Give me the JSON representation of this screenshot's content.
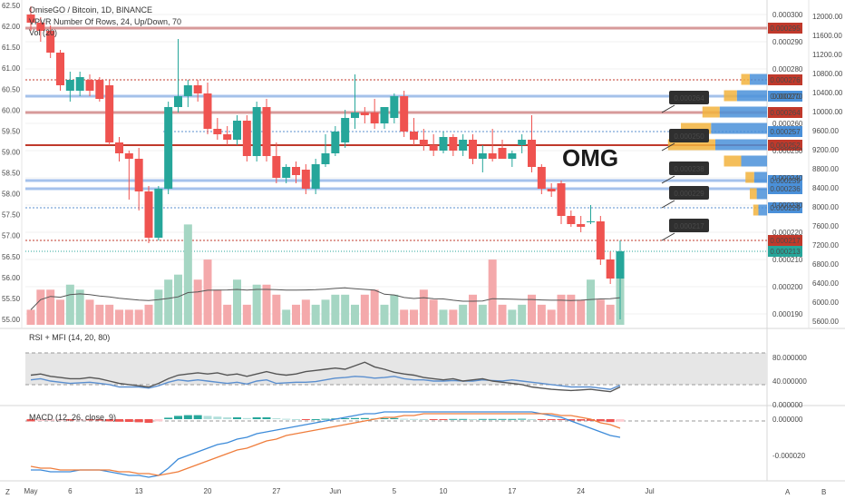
{
  "header": {
    "symbol_title": "OmiseGO / Bitcoin, 1D, BINANCE",
    "vpvr_label": "VPVR Number Of Rows, 24, Up/Down, 70",
    "vol_label": "Vol (20)"
  },
  "annotation": {
    "text": "OMG"
  },
  "colors": {
    "up": "#26a69a",
    "down": "#ef5350",
    "up_vol": "#a5d6c3",
    "down_vol": "#f4a9ab",
    "hline_blue": "#8fb4e8",
    "hline_red": "#c0392b",
    "ma_line": "#555555",
    "rsi_line": "#5b8fcf",
    "mfi_line": "#555555",
    "macd_line": "#3d8bd9",
    "signal_line": "#ef7d3c"
  },
  "chart_data": [
    {
      "type": "candlestick",
      "name": "price",
      "x_tick_labels": [
        "May",
        "6",
        "13",
        "20",
        "27",
        "Jun",
        "5",
        "10",
        "17",
        "24",
        "Jul"
      ],
      "left_axis_ticks": [
        "62.50",
        "62.00",
        "61.50",
        "61.00",
        "60.50",
        "60.00",
        "59.50",
        "59.00",
        "58.50",
        "58.00",
        "57.50",
        "57.00",
        "56.50",
        "56.00",
        "55.50",
        "55.00"
      ],
      "right_axis_ticks": [
        "0.000300",
        "0.000290",
        "0.000280",
        "0.000270",
        "0.000260",
        "0.000250",
        "0.000240",
        "0.000230",
        "0.000220",
        "0.000210",
        "0.000200",
        "0.000190"
      ],
      "volume_axis_ticks": [
        "12000.00",
        "11600.00",
        "11200.00",
        "10800.00",
        "10400.00",
        "10000.00",
        "9600.00",
        "9200.00",
        "8800.00",
        "8400.00",
        "8000.00",
        "7600.00",
        "7200.00",
        "6800.00",
        "6400.00",
        "6000.00",
        "5600.00"
      ],
      "ylim": [
        0.000186,
        0.000304
      ],
      "candles": [
        {
          "o": 0.0003,
          "h": 0.000303,
          "l": 0.000294,
          "c": 0.000297
        },
        {
          "o": 0.000297,
          "h": 0.000299,
          "l": 0.00029,
          "c": 0.000294
        },
        {
          "o": 0.000294,
          "h": 0.000296,
          "l": 0.000284,
          "c": 0.000286
        },
        {
          "o": 0.000286,
          "h": 0.000287,
          "l": 0.000272,
          "c": 0.000274
        },
        {
          "o": 0.000272,
          "h": 0.000279,
          "l": 0.000268,
          "c": 0.000276
        },
        {
          "o": 0.000272,
          "h": 0.000279,
          "l": 0.00027,
          "c": 0.000277
        },
        {
          "o": 0.000276,
          "h": 0.000278,
          "l": 0.00027,
          "c": 0.000272
        },
        {
          "o": 0.000276,
          "h": 0.000277,
          "l": 0.000268,
          "c": 0.000269
        },
        {
          "o": 0.000274,
          "h": 0.000276,
          "l": 0.000252,
          "c": 0.000253
        },
        {
          "o": 0.000253,
          "h": 0.000255,
          "l": 0.000246,
          "c": 0.000249
        },
        {
          "o": 0.000249,
          "h": 0.00025,
          "l": 0.000232,
          "c": 0.000247
        },
        {
          "o": 0.000247,
          "h": 0.000251,
          "l": 0.000228,
          "c": 0.000235
        },
        {
          "o": 0.000235,
          "h": 0.000237,
          "l": 0.000216,
          "c": 0.000218
        },
        {
          "o": 0.000218,
          "h": 0.000237,
          "l": 0.000217,
          "c": 0.000236
        },
        {
          "o": 0.000236,
          "h": 0.000268,
          "l": 0.000234,
          "c": 0.000266
        },
        {
          "o": 0.000266,
          "h": 0.000291,
          "l": 0.000264,
          "c": 0.00027
        },
        {
          "o": 0.00027,
          "h": 0.000276,
          "l": 0.000266,
          "c": 0.000274
        },
        {
          "o": 0.000274,
          "h": 0.000276,
          "l": 0.000268,
          "c": 0.000271
        },
        {
          "o": 0.000271,
          "h": 0.000275,
          "l": 0.000256,
          "c": 0.000258
        },
        {
          "o": 0.000258,
          "h": 0.000262,
          "l": 0.000254,
          "c": 0.000256
        },
        {
          "o": 0.000256,
          "h": 0.000259,
          "l": 0.000252,
          "c": 0.000254
        },
        {
          "o": 0.000254,
          "h": 0.000263,
          "l": 0.000252,
          "c": 0.000261
        },
        {
          "o": 0.000261,
          "h": 0.000263,
          "l": 0.000246,
          "c": 0.000248
        },
        {
          "o": 0.000248,
          "h": 0.000268,
          "l": 0.000246,
          "c": 0.000266
        },
        {
          "o": 0.000266,
          "h": 0.000269,
          "l": 0.000246,
          "c": 0.000248
        },
        {
          "o": 0.000248,
          "h": 0.000253,
          "l": 0.000238,
          "c": 0.00024
        },
        {
          "o": 0.00024,
          "h": 0.000245,
          "l": 0.000238,
          "c": 0.000244
        },
        {
          "o": 0.000244,
          "h": 0.000246,
          "l": 0.000238,
          "c": 0.000241
        },
        {
          "o": 0.000243,
          "h": 0.000245,
          "l": 0.000234,
          "c": 0.000236
        },
        {
          "o": 0.000236,
          "h": 0.000247,
          "l": 0.000234,
          "c": 0.000245
        },
        {
          "o": 0.000245,
          "h": 0.000256,
          "l": 0.000244,
          "c": 0.000249
        },
        {
          "o": 0.000249,
          "h": 0.000259,
          "l": 0.000248,
          "c": 0.000257
        },
        {
          "o": 0.000253,
          "h": 0.000265,
          "l": 0.000251,
          "c": 0.000262
        },
        {
          "o": 0.000262,
          "h": 0.000278,
          "l": 0.000258,
          "c": 0.000264
        },
        {
          "o": 0.000264,
          "h": 0.000266,
          "l": 0.00026,
          "c": 0.000263
        },
        {
          "o": 0.000264,
          "h": 0.000269,
          "l": 0.000258,
          "c": 0.00026
        },
        {
          "o": 0.00026,
          "h": 0.000266,
          "l": 0.000258,
          "c": 0.000266
        },
        {
          "o": 0.000262,
          "h": 0.000271,
          "l": 0.00026,
          "c": 0.00027
        },
        {
          "o": 0.00027,
          "h": 0.000272,
          "l": 0.000255,
          "c": 0.000257
        },
        {
          "o": 0.000257,
          "h": 0.000262,
          "l": 0.000252,
          "c": 0.000254
        },
        {
          "o": 0.000254,
          "h": 0.000258,
          "l": 0.00025,
          "c": 0.000252
        },
        {
          "o": 0.000252,
          "h": 0.000256,
          "l": 0.000248,
          "c": 0.00025
        },
        {
          "o": 0.00025,
          "h": 0.000257,
          "l": 0.000249,
          "c": 0.000255
        },
        {
          "o": 0.000255,
          "h": 0.000256,
          "l": 0.000248,
          "c": 0.00025
        },
        {
          "o": 0.00025,
          "h": 0.000256,
          "l": 0.000248,
          "c": 0.000254
        },
        {
          "o": 0.000254,
          "h": 0.000256,
          "l": 0.000245,
          "c": 0.000247
        },
        {
          "o": 0.000247,
          "h": 0.000252,
          "l": 0.000242,
          "c": 0.000249
        },
        {
          "o": 0.000249,
          "h": 0.000258,
          "l": 0.000246,
          "c": 0.000247
        },
        {
          "o": 0.000251,
          "h": 0.000254,
          "l": 0.000248,
          "c": 0.000247
        },
        {
          "o": 0.000247,
          "h": 0.00025,
          "l": 0.000244,
          "c": 0.000249
        },
        {
          "o": 0.000252,
          "h": 0.000256,
          "l": 0.000249,
          "c": 0.000254
        },
        {
          "o": 0.000254,
          "h": 0.000263,
          "l": 0.000242,
          "c": 0.000244
        },
        {
          "o": 0.000244,
          "h": 0.000245,
          "l": 0.000234,
          "c": 0.000236
        },
        {
          "o": 0.000236,
          "h": 0.000238,
          "l": 0.000233,
          "c": 0.000235
        },
        {
          "o": 0.000238,
          "h": 0.000239,
          "l": 0.000223,
          "c": 0.000226
        },
        {
          "o": 0.000226,
          "h": 0.000228,
          "l": 0.000222,
          "c": 0.000223
        },
        {
          "o": 0.000223,
          "h": 0.000226,
          "l": 0.00022,
          "c": 0.000222
        },
        {
          "o": 0.000224,
          "h": 0.00023,
          "l": 0.000223,
          "c": 0.000224
        },
        {
          "o": 0.000224,
          "h": 0.000226,
          "l": 0.000208,
          "c": 0.00021
        },
        {
          "o": 0.00021,
          "h": 0.000213,
          "l": 0.000201,
          "c": 0.000203
        },
        {
          "o": 0.000203,
          "h": 0.000217,
          "l": 0.000188,
          "c": 0.000213
        }
      ],
      "volumes": [
        5900,
        6300,
        6300,
        6100,
        6400,
        6300,
        6100,
        6000,
        6000,
        5900,
        5900,
        5900,
        6000,
        6300,
        6500,
        6600,
        7600,
        6500,
        6900,
        6300,
        6000,
        6500,
        6000,
        6400,
        6400,
        6200,
        5900,
        6000,
        6100,
        6000,
        6100,
        6200,
        6200,
        6000,
        6200,
        6300,
        6000,
        6200,
        5900,
        5900,
        6300,
        6100,
        5900,
        5900,
        6000,
        6200,
        6000,
        6900,
        6000,
        5900,
        6000,
        6200,
        6000,
        5900,
        6200,
        6200,
        6100,
        6500,
        6100,
        6000,
        6700
      ],
      "horizontal_levels": [
        {
          "value": 0.000295,
          "label": "0.000295",
          "style": "red-band"
        },
        {
          "value": 0.000276,
          "label": "0.000276",
          "style": "red-dotted"
        },
        {
          "value": 0.00027,
          "label": "0.000270",
          "style": "blue-band"
        },
        {
          "value": 0.000264,
          "label": "0.000264",
          "style": "red-band"
        },
        {
          "value": 0.000257,
          "label": "0.000257",
          "style": "blue-dotted"
        },
        {
          "value": 0.000252,
          "label": "0.000252",
          "style": "red-solid"
        },
        {
          "value": 0.000239,
          "label": "0.000239",
          "style": "blue-band"
        },
        {
          "value": 0.000236,
          "label": "0.000236",
          "style": "blue-band"
        },
        {
          "value": 0.000229,
          "label": "0.000229",
          "style": "blue-dotted"
        },
        {
          "value": 0.000217,
          "label": "0.000217",
          "style": "red-dotted"
        },
        {
          "value": 0.000213,
          "label": "0.000213",
          "style": "teal-dotted"
        }
      ],
      "callouts": [
        {
          "value": 0.000264,
          "label": "0.000264"
        },
        {
          "value": 0.00025,
          "label": "0.000250"
        },
        {
          "value": 0.000238,
          "label": "0.000238"
        },
        {
          "value": 0.000229,
          "label": "0.000229"
        },
        {
          "value": 0.000217,
          "label": "0.000217"
        }
      ],
      "vpvr_profile": [
        {
          "price": 0.000276,
          "up": 0.2,
          "down": 0.1
        },
        {
          "price": 0.00027,
          "up": 0.35,
          "down": 0.15
        },
        {
          "price": 0.000264,
          "up": 0.55,
          "down": 0.2
        },
        {
          "price": 0.000258,
          "up": 0.65,
          "down": 0.35
        },
        {
          "price": 0.000252,
          "up": 0.6,
          "down": 0.55
        },
        {
          "price": 0.000246,
          "up": 0.3,
          "down": 0.2
        },
        {
          "price": 0.00024,
          "up": 0.15,
          "down": 0.1
        },
        {
          "price": 0.000234,
          "up": 0.12,
          "down": 0.08
        },
        {
          "price": 0.000228,
          "up": 0.1,
          "down": 0.06
        }
      ]
    },
    {
      "type": "line",
      "name": "rsi-mfi",
      "legend": "RSI + MFI (14, 20, 80)",
      "axis_ticks": [
        "80.000000",
        "40.000000",
        "0.000000"
      ],
      "ylim": [
        0,
        100
      ],
      "bands": [
        20,
        80
      ],
      "rsi": [
        42,
        44,
        40,
        38,
        36,
        37,
        38,
        36,
        34,
        30,
        30,
        30,
        28,
        32,
        38,
        42,
        40,
        42,
        40,
        38,
        36,
        38,
        35,
        40,
        42,
        36,
        37,
        38,
        38,
        39,
        42,
        45,
        46,
        48,
        47,
        45,
        46,
        48,
        44,
        42,
        42,
        40,
        40,
        41,
        40,
        40,
        42,
        41,
        40,
        42,
        40,
        38,
        36,
        34,
        32,
        30,
        30,
        30,
        28,
        26,
        33
      ],
      "mfi": [
        50,
        52,
        48,
        46,
        44,
        44,
        46,
        44,
        40,
        36,
        34,
        32,
        30,
        36,
        44,
        50,
        52,
        54,
        52,
        54,
        50,
        52,
        48,
        52,
        56,
        52,
        50,
        52,
        56,
        58,
        60,
        62,
        60,
        66,
        72,
        64,
        60,
        55,
        52,
        50,
        46,
        44,
        42,
        44,
        40,
        42,
        44,
        40,
        38,
        36,
        34,
        30,
        28,
        26,
        25,
        24,
        25,
        26,
        24,
        22,
        30
      ]
    },
    {
      "type": "bar+line",
      "name": "macd",
      "legend": "MACD (12, 26, close, 9)",
      "axis_ticks": [
        "0.000000",
        "-0.000020"
      ],
      "ylim": [
        -3.3e-05,
        5e-06
      ],
      "histogram": [
        -1.2e-06,
        -1e-06,
        -9e-07,
        -8e-07,
        -8e-07,
        -7e-07,
        -7e-07,
        -8e-07,
        -1.2e-06,
        -1.4e-06,
        -1.5e-06,
        -1.7e-06,
        -2e-06,
        -1.2e-06,
        8e-07,
        1.8e-06,
        2.2e-06,
        2.2e-06,
        1.8e-06,
        1.4e-06,
        1e-06,
        1e-06,
        6e-07,
        1e-06,
        1e-06,
        5e-07,
        2e-07,
        0.0,
        -2e-07,
        0.0,
        2e-07,
        4e-07,
        5e-07,
        6e-07,
        6e-07,
        5e-07,
        5e-07,
        6e-07,
        2e-07,
        1e-07,
        0.0,
        -1e-07,
        -1e-07,
        1e-07,
        1e-07,
        0.0,
        1e-07,
        1e-07,
        1e-07,
        1e-07,
        2e-07,
        0.0,
        -2e-07,
        -3e-07,
        -5e-07,
        -7e-07,
        -8e-07,
        -9e-07,
        -1.2e-06,
        -1.6e-06,
        -1.4e-06
      ],
      "macd": [
        -2.8e-05,
        -2.8e-05,
        -2.9e-05,
        -2.9e-05,
        -2.9e-05,
        -2.8e-05,
        -2.8e-05,
        -2.8e-05,
        -2.9e-05,
        -3e-05,
        -3.1e-05,
        -3.1e-05,
        -3.2e-05,
        -3.1e-05,
        -2.7e-05,
        -2.2e-05,
        -2e-05,
        -1.8e-05,
        -1.6e-05,
        -1.4e-05,
        -1.3e-05,
        -1.1e-05,
        -1e-05,
        -8e-06,
        -7e-06,
        -6e-06,
        -5e-06,
        -4e-06,
        -3e-06,
        -2e-06,
        -1e-06,
        0.0,
        1e-06,
        2e-06,
        3e-06,
        3e-06,
        4e-06,
        4e-06,
        4e-06,
        4e-06,
        4e-06,
        4e-06,
        4e-06,
        4e-06,
        4e-06,
        4e-06,
        4e-06,
        4e-06,
        4e-06,
        4e-06,
        4e-06,
        4e-06,
        3e-06,
        2e-06,
        1e-06,
        -1e-06,
        -3e-06,
        -5e-06,
        -7e-06,
        -9e-06,
        -1e-05
      ],
      "signal": [
        -2.6e-05,
        -2.7e-05,
        -2.7e-05,
        -2.8e-05,
        -2.8e-05,
        -2.8e-05,
        -2.8e-05,
        -2.8e-05,
        -2.8e-05,
        -2.9e-05,
        -2.9e-05,
        -3e-05,
        -3e-05,
        -3.1e-05,
        -3e-05,
        -2.9e-05,
        -2.7e-05,
        -2.5e-05,
        -2.3e-05,
        -2.1e-05,
        -1.9e-05,
        -1.7e-05,
        -1.6e-05,
        -1.4e-05,
        -1.2e-05,
        -1.1e-05,
        -9e-06,
        -8e-06,
        -7e-06,
        -6e-06,
        -5e-06,
        -4e-06,
        -3e-06,
        -2e-06,
        -1e-06,
        0.0,
        1e-06,
        1e-06,
        2e-06,
        2e-06,
        3e-06,
        3e-06,
        3e-06,
        3e-06,
        3e-06,
        3e-06,
        3e-06,
        3e-06,
        3e-06,
        3e-06,
        3e-06,
        3e-06,
        3e-06,
        3e-06,
        2e-06,
        2e-06,
        1e-06,
        0.0,
        -2e-06,
        -3e-06,
        -5e-06
      ]
    }
  ]
}
